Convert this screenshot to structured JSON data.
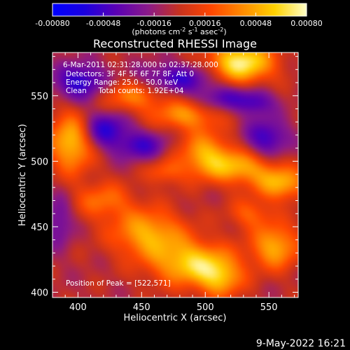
{
  "chart_data": {
    "type": "heatmap",
    "title": "Reconstructed RHESSI Image",
    "xlabel": "Heliocentric X (arcsec)",
    "ylabel": "Heliocentric Y (arcsec)",
    "xlim": [
      380,
      573
    ],
    "ylim": [
      396,
      583
    ],
    "x_ticks": [
      "400",
      "450",
      "500",
      "550"
    ],
    "y_ticks": [
      "400",
      "450",
      "500",
      "550"
    ],
    "colorbar": {
      "min": -0.0008,
      "max": 0.0008,
      "ticks": [
        "-0.00080",
        "-0.00048",
        "-0.00016",
        "0.00016",
        "0.00048",
        "0.00080"
      ],
      "label_parts": [
        "(photons cm",
        "-2",
        " s",
        "-1",
        " asec",
        "-2",
        ")"
      ],
      "colors": [
        "#0000ff",
        "#1a00e0",
        "#5a00b4",
        "#8a1a8a",
        "#c8321e",
        "#ff4600",
        "#ff8c00",
        "#ffd200",
        "#ffffc8"
      ]
    },
    "annotations": [
      "6-Mar-2011 02:31:28.000 to 02:37:28.000",
      "Detectors: 3F 4F 5F 6F 7F 8F, Att 0",
      "Energy Range: 25.0 - 50.0 keV",
      "Clean     Total counts: 1.92E+04",
      "Position of Peak = [522,571]"
    ],
    "peak": {
      "x": 522,
      "y": 571
    },
    "background_level": -5e-05,
    "blobs": [
      {
        "x": 528,
        "y": 575,
        "sx": 18,
        "sy": 11,
        "value": 0.0008
      },
      {
        "x": 395,
        "y": 515,
        "sx": 12,
        "sy": 16,
        "value": 0.00065
      },
      {
        "x": 442,
        "y": 550,
        "sx": 20,
        "sy": 9,
        "value": 0.0004
      },
      {
        "x": 485,
        "y": 535,
        "sx": 18,
        "sy": 8,
        "value": 0.00045
      },
      {
        "x": 500,
        "y": 505,
        "sx": 15,
        "sy": 12,
        "value": 0.00055
      },
      {
        "x": 528,
        "y": 495,
        "sx": 17,
        "sy": 9,
        "value": 0.0005
      },
      {
        "x": 560,
        "y": 483,
        "sx": 14,
        "sy": 9,
        "value": 0.00055
      },
      {
        "x": 468,
        "y": 492,
        "sx": 10,
        "sy": 7,
        "value": 0.0003
      },
      {
        "x": 420,
        "y": 470,
        "sx": 16,
        "sy": 10,
        "value": 0.00035
      },
      {
        "x": 455,
        "y": 445,
        "sx": 20,
        "sy": 13,
        "value": 0.00055
      },
      {
        "x": 490,
        "y": 422,
        "sx": 22,
        "sy": 12,
        "value": 0.00065
      },
      {
        "x": 512,
        "y": 410,
        "sx": 12,
        "sy": 10,
        "value": 0.00045
      },
      {
        "x": 555,
        "y": 435,
        "sx": 13,
        "sy": 12,
        "value": 0.00055
      },
      {
        "x": 535,
        "y": 460,
        "sx": 12,
        "sy": 8,
        "value": 0.0003
      },
      {
        "x": 420,
        "y": 525,
        "sx": 13,
        "sy": 10,
        "value": -0.0005
      },
      {
        "x": 402,
        "y": 560,
        "sx": 14,
        "sy": 10,
        "value": -0.00055
      },
      {
        "x": 478,
        "y": 563,
        "sx": 22,
        "sy": 8,
        "value": -0.00045
      },
      {
        "x": 450,
        "y": 512,
        "sx": 15,
        "sy": 8,
        "value": -0.0004
      },
      {
        "x": 515,
        "y": 548,
        "sx": 16,
        "sy": 7,
        "value": -0.00035
      },
      {
        "x": 548,
        "y": 518,
        "sx": 12,
        "sy": 10,
        "value": -0.00045
      },
      {
        "x": 540,
        "y": 545,
        "sx": 10,
        "sy": 7,
        "value": -0.00035
      },
      {
        "x": 385,
        "y": 455,
        "sx": 8,
        "sy": 14,
        "value": -0.0003
      }
    ]
  },
  "footer": {
    "timestamp": "9-May-2022 16:21"
  }
}
